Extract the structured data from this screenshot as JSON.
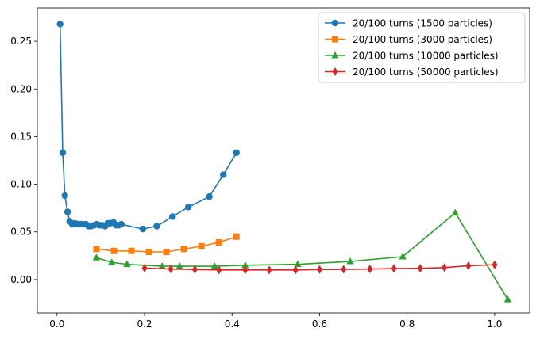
{
  "chart_data": {
    "type": "line",
    "title": "",
    "xlabel": "",
    "ylabel": "",
    "xlim": [
      -0.045,
      1.08
    ],
    "ylim": [
      -0.035,
      0.285
    ],
    "xticks": [
      0.0,
      0.2,
      0.4,
      0.6,
      0.8,
      1.0
    ],
    "xtick_labels": [
      "0.0",
      "0.2",
      "0.4",
      "0.6",
      "0.8",
      "1.0"
    ],
    "yticks": [
      0.0,
      0.05,
      0.1,
      0.15,
      0.2,
      0.25
    ],
    "ytick_labels": [
      "0.00",
      "0.05",
      "0.10",
      "0.15",
      "0.20",
      "0.25"
    ],
    "grid": false,
    "legend_position": "top-right",
    "series": [
      {
        "name": "20/100 turns (1500 particles)",
        "color": "#1f77b4",
        "marker": "circle",
        "x": [
          0.007,
          0.013,
          0.018,
          0.024,
          0.029,
          0.035,
          0.041,
          0.047,
          0.053,
          0.059,
          0.066,
          0.072,
          0.078,
          0.085,
          0.091,
          0.097,
          0.103,
          0.11,
          0.116,
          0.122,
          0.129,
          0.135,
          0.141,
          0.147,
          0.196,
          0.228,
          0.264,
          0.3,
          0.348,
          0.38,
          0.41
        ],
        "y": [
          0.268,
          0.133,
          0.088,
          0.071,
          0.061,
          0.058,
          0.059,
          0.058,
          0.058,
          0.058,
          0.058,
          0.056,
          0.056,
          0.057,
          0.058,
          0.057,
          0.057,
          0.056,
          0.059,
          0.059,
          0.06,
          0.057,
          0.057,
          0.058,
          0.053,
          0.056,
          0.066,
          0.076,
          0.087,
          0.11,
          0.133
        ]
      },
      {
        "name": "20/100 turns (3000 particles)",
        "color": "#ff7f0e",
        "marker": "square",
        "x": [
          0.09,
          0.13,
          0.17,
          0.21,
          0.25,
          0.29,
          0.33,
          0.37,
          0.41
        ],
        "y": [
          0.032,
          0.03,
          0.03,
          0.029,
          0.029,
          0.032,
          0.035,
          0.039,
          0.045
        ]
      },
      {
        "name": "20/100 turns (10000 particles)",
        "color": "#2ca02c",
        "marker": "triangle",
        "x": [
          0.09,
          0.125,
          0.16,
          0.24,
          0.28,
          0.36,
          0.43,
          0.55,
          0.67,
          0.79,
          0.91,
          1.03
        ],
        "y": [
          0.023,
          0.018,
          0.016,
          0.014,
          0.014,
          0.014,
          0.015,
          0.016,
          0.019,
          0.024,
          0.07,
          -0.021
        ]
      },
      {
        "name": "20/100 turns (50000 particles)",
        "color": "#d62728",
        "marker": "diamond",
        "x": [
          0.2,
          0.26,
          0.315,
          0.37,
          0.43,
          0.485,
          0.545,
          0.6,
          0.655,
          0.715,
          0.77,
          0.83,
          0.885,
          0.94,
          1.0
        ],
        "y": [
          0.012,
          0.011,
          0.0105,
          0.01,
          0.01,
          0.01,
          0.01,
          0.0105,
          0.0107,
          0.011,
          0.0115,
          0.0118,
          0.0125,
          0.0145,
          0.0155
        ]
      }
    ]
  }
}
